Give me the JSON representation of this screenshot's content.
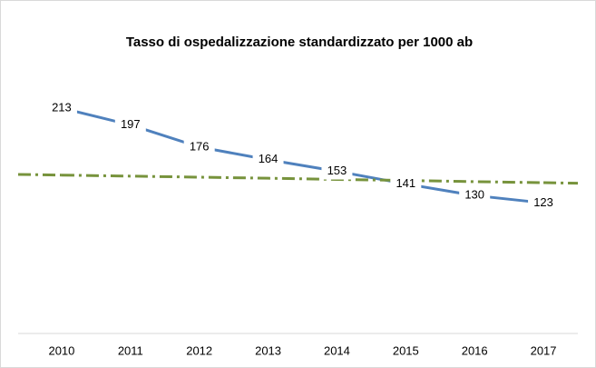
{
  "chart_data": {
    "type": "line",
    "title": "Tasso di ospedalizzazione standardizzato per 1000 ab",
    "categories": [
      "2010",
      "2011",
      "2012",
      "2013",
      "2014",
      "2015",
      "2016",
      "2017"
    ],
    "series": [
      {
        "color": "#4f81bd",
        "values": [
          213,
          197,
          176,
          164,
          153,
          141,
          130,
          123
        ],
        "data_labels": true
      },
      {
        "color": "#77933c",
        "values": [
          149.4,
          148.4,
          147.4,
          146.4,
          145.3,
          144.3,
          143.2,
          142.2
        ],
        "dash": "dashdot"
      }
    ],
    "ylim": [
      0,
      250
    ]
  }
}
